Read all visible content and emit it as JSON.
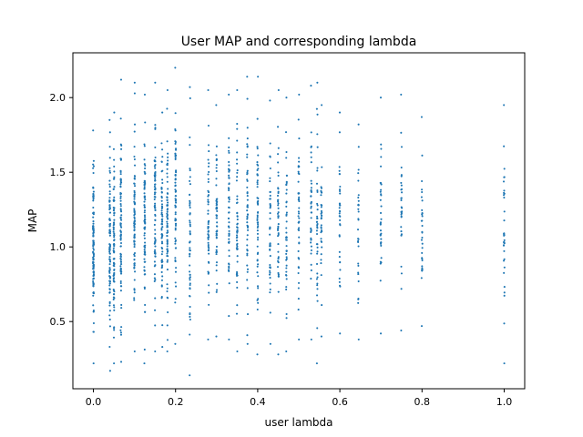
{
  "chart_data": {
    "type": "scatter",
    "title": "User MAP and corresponding lambda",
    "xlabel": "user lambda",
    "ylabel": "MAP",
    "xlim": [
      -0.05,
      1.05
    ],
    "ylim": [
      0.05,
      2.3
    ],
    "xticks": [
      {
        "value": 0.0,
        "label": "0.0"
      },
      {
        "value": 0.2,
        "label": "0.2"
      },
      {
        "value": 0.4,
        "label": "0.4"
      },
      {
        "value": 0.6,
        "label": "0.6"
      },
      {
        "value": 0.8,
        "label": "0.8"
      },
      {
        "value": 1.0,
        "label": "1.0"
      }
    ],
    "yticks": [
      {
        "value": 0.5,
        "label": "0.5"
      },
      {
        "value": 1.0,
        "label": "1.0"
      },
      {
        "value": 1.5,
        "label": "1.5"
      },
      {
        "value": 2.0,
        "label": "2.0"
      }
    ],
    "grid": false,
    "marker_color": "#1f77b4",
    "columns": [
      {
        "x": 0.0,
        "ymin": 0.22,
        "ymax": 1.78,
        "count": 120
      },
      {
        "x": 0.04,
        "ymin": 0.17,
        "ymax": 1.85,
        "count": 90
      },
      {
        "x": 0.05,
        "ymin": 0.22,
        "ymax": 1.9,
        "count": 90
      },
      {
        "x": 0.067,
        "ymin": 0.23,
        "ymax": 2.12,
        "count": 85
      },
      {
        "x": 0.1,
        "ymin": 0.3,
        "ymax": 2.1,
        "count": 80
      },
      {
        "x": 0.125,
        "ymin": 0.22,
        "ymax": 2.02,
        "count": 80
      },
      {
        "x": 0.15,
        "ymin": 0.3,
        "ymax": 2.1,
        "count": 78
      },
      {
        "x": 0.167,
        "ymin": 0.33,
        "ymax": 1.9,
        "count": 70
      },
      {
        "x": 0.18,
        "ymin": 0.3,
        "ymax": 2.05,
        "count": 70
      },
      {
        "x": 0.2,
        "ymin": 0.35,
        "ymax": 2.2,
        "count": 70
      },
      {
        "x": 0.235,
        "ymin": 0.14,
        "ymax": 2.07,
        "count": 55
      },
      {
        "x": 0.28,
        "ymin": 0.38,
        "ymax": 2.05,
        "count": 55
      },
      {
        "x": 0.3,
        "ymin": 0.4,
        "ymax": 1.95,
        "count": 55
      },
      {
        "x": 0.33,
        "ymin": 0.38,
        "ymax": 2.02,
        "count": 55
      },
      {
        "x": 0.35,
        "ymin": 0.3,
        "ymax": 2.05,
        "count": 50
      },
      {
        "x": 0.375,
        "ymin": 0.35,
        "ymax": 2.14,
        "count": 50
      },
      {
        "x": 0.4,
        "ymin": 0.28,
        "ymax": 2.14,
        "count": 55
      },
      {
        "x": 0.43,
        "ymin": 0.35,
        "ymax": 1.98,
        "count": 45
      },
      {
        "x": 0.45,
        "ymin": 0.28,
        "ymax": 2.05,
        "count": 45
      },
      {
        "x": 0.47,
        "ymin": 0.3,
        "ymax": 2.0,
        "count": 45
      },
      {
        "x": 0.5,
        "ymin": 0.38,
        "ymax": 2.02,
        "count": 45
      },
      {
        "x": 0.53,
        "ymin": 0.38,
        "ymax": 2.08,
        "count": 40
      },
      {
        "x": 0.545,
        "ymin": 0.22,
        "ymax": 2.1,
        "count": 40
      },
      {
        "x": 0.555,
        "ymin": 0.4,
        "ymax": 1.95,
        "count": 35
      },
      {
        "x": 0.6,
        "ymin": 0.42,
        "ymax": 1.9,
        "count": 35
      },
      {
        "x": 0.645,
        "ymin": 0.38,
        "ymax": 1.82,
        "count": 30
      },
      {
        "x": 0.7,
        "ymin": 0.42,
        "ymax": 2.0,
        "count": 35
      },
      {
        "x": 0.75,
        "ymin": 0.44,
        "ymax": 2.02,
        "count": 32
      },
      {
        "x": 0.8,
        "ymin": 0.47,
        "ymax": 1.87,
        "count": 32
      },
      {
        "x": 1.0,
        "ymin": 0.22,
        "ymax": 1.95,
        "count": 35
      }
    ]
  }
}
